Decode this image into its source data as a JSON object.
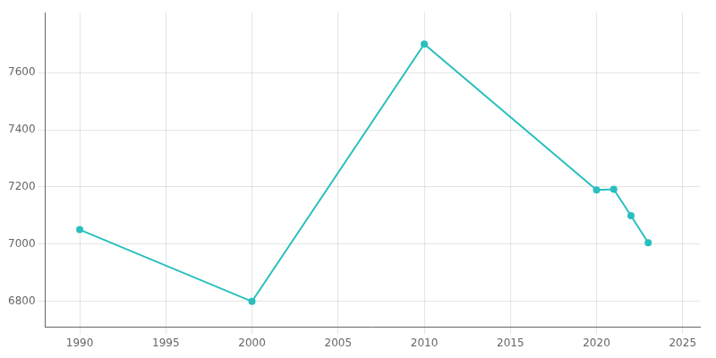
{
  "chart_data": {
    "type": "line",
    "x": [
      1990,
      2000,
      2010,
      2020,
      2021,
      2022,
      2023
    ],
    "values": [
      7051,
      6800,
      7700,
      7190,
      7192,
      7100,
      7005
    ],
    "color": "#2abfbf",
    "marker": "circle",
    "xlim": [
      1988,
      2026
    ],
    "ylim": [
      6710,
      7810
    ],
    "xticks": [
      1990,
      1995,
      2000,
      2005,
      2010,
      2015,
      2020,
      2025
    ],
    "yticks": [
      6800,
      7000,
      7200,
      7400,
      7600
    ],
    "grid": true
  }
}
